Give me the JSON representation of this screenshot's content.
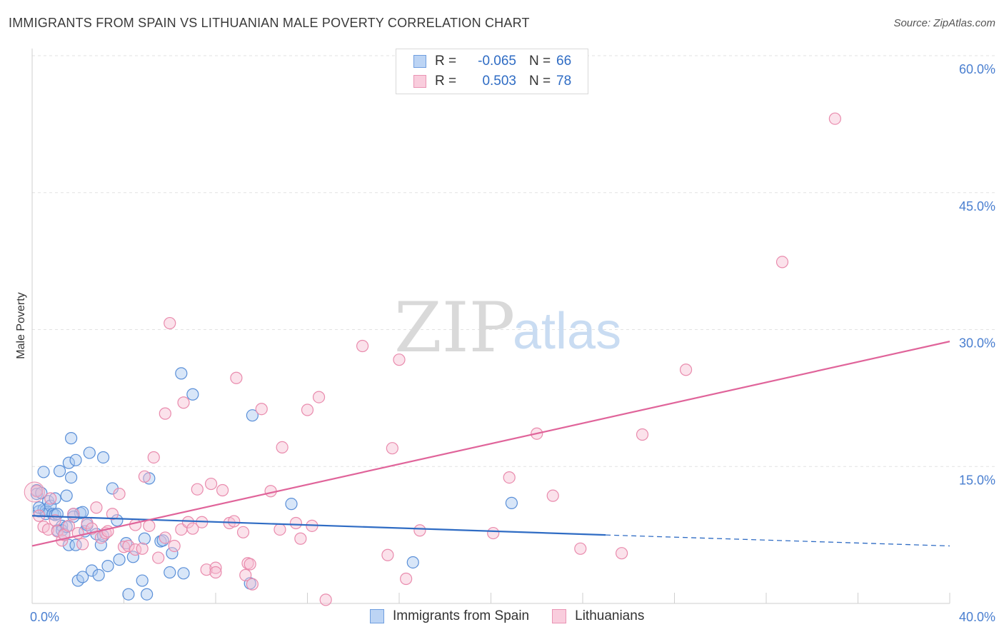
{
  "header": {
    "title": "IMMIGRANTS FROM SPAIN VS LITHUANIAN MALE POVERTY CORRELATION CHART",
    "source": "Source: ZipAtlas.com"
  },
  "watermark": {
    "zip": "ZIP",
    "atlas": "atlas"
  },
  "legend": {
    "rows": [
      {
        "r_label": "R =",
        "r_value": "-0.065",
        "n_label": "N =",
        "n_value": "66"
      },
      {
        "r_label": "R =",
        "r_value": "0.503",
        "n_label": "N =",
        "n_value": "78"
      }
    ]
  },
  "bottom_legend": {
    "items": [
      {
        "label": "Immigrants from Spain"
      },
      {
        "label": "Lithuanians"
      }
    ]
  },
  "colors": {
    "blue_fill": "#a9c8f0",
    "blue_stroke": "#5a8fd8",
    "blue_line": "#2f6cc4",
    "pink_fill": "#f6bfd2",
    "pink_stroke": "#e98bad",
    "pink_line": "#e0649a",
    "grid": "#e2e2e2",
    "tick_text": "#4a7fd0"
  },
  "chart_data": {
    "type": "scatter",
    "title": "IMMIGRANTS FROM SPAIN VS LITHUANIAN MALE POVERTY CORRELATION CHART",
    "xlabel": "",
    "ylabel": "Male Poverty",
    "xlim": [
      0,
      40
    ],
    "ylim": [
      0,
      60
    ],
    "x_tick_labels": [
      "0.0%",
      "40.0%"
    ],
    "y_tick_labels": [
      "15.0%",
      "30.0%",
      "45.0%",
      "60.0%"
    ],
    "y_ticks": [
      15,
      30,
      45,
      60
    ],
    "series": [
      {
        "name": "Immigrants from Spain",
        "R": -0.065,
        "N": 66,
        "trend": {
          "x0": 0,
          "y0": 9.6,
          "x1": 25,
          "y1": 7.5,
          "dash_to_x": 40,
          "dash_to_y": 6.3
        },
        "points": [
          [
            0.2,
            12.4
          ],
          [
            0.2,
            12.0
          ],
          [
            0.3,
            10.1
          ],
          [
            0.5,
            10.3
          ],
          [
            0.5,
            14.4
          ],
          [
            0.6,
            10.2
          ],
          [
            0.6,
            9.8
          ],
          [
            0.7,
            11.2
          ],
          [
            0.8,
            10.7
          ],
          [
            0.9,
            9.8
          ],
          [
            1.0,
            11.5
          ],
          [
            1.0,
            9.7
          ],
          [
            1.1,
            9.8
          ],
          [
            1.1,
            8.0
          ],
          [
            1.2,
            14.5
          ],
          [
            1.3,
            8.5
          ],
          [
            1.3,
            8.0
          ],
          [
            1.4,
            7.6
          ],
          [
            1.5,
            8.4
          ],
          [
            1.5,
            11.8
          ],
          [
            1.6,
            6.4
          ],
          [
            1.6,
            15.4
          ],
          [
            1.7,
            18.1
          ],
          [
            1.7,
            13.8
          ],
          [
            1.8,
            9.8
          ],
          [
            1.9,
            15.7
          ],
          [
            1.9,
            6.4
          ],
          [
            2.0,
            2.5
          ],
          [
            2.1,
            9.9
          ],
          [
            2.2,
            2.9
          ],
          [
            2.2,
            10.0
          ],
          [
            2.3,
            7.9
          ],
          [
            2.5,
            16.5
          ],
          [
            2.6,
            3.6
          ],
          [
            2.8,
            7.6
          ],
          [
            2.9,
            3.1
          ],
          [
            3.0,
            6.4
          ],
          [
            3.1,
            7.4
          ],
          [
            3.1,
            16.0
          ],
          [
            3.3,
            4.1
          ],
          [
            3.5,
            12.6
          ],
          [
            3.8,
            4.8
          ],
          [
            4.1,
            6.6
          ],
          [
            4.2,
            1.0
          ],
          [
            4.4,
            5.1
          ],
          [
            4.8,
            2.5
          ],
          [
            5.0,
            1.0
          ],
          [
            5.1,
            13.7
          ],
          [
            5.6,
            6.8
          ],
          [
            5.7,
            6.9
          ],
          [
            6.0,
            3.4
          ],
          [
            6.1,
            5.5
          ],
          [
            6.5,
            25.2
          ],
          [
            6.6,
            3.3
          ],
          [
            7.0,
            22.9
          ],
          [
            9.6,
            20.6
          ],
          [
            11.3,
            10.9
          ],
          [
            16.6,
            4.5
          ],
          [
            20.9,
            11.0
          ],
          [
            0.3,
            10.5
          ],
          [
            0.4,
            12.1
          ],
          [
            1.8,
            9.5
          ],
          [
            2.4,
            8.6
          ],
          [
            4.9,
            7.1
          ],
          [
            3.7,
            9.1
          ],
          [
            9.5,
            2.2
          ]
        ]
      },
      {
        "name": "Lithuanians",
        "R": 0.503,
        "N": 78,
        "trend": {
          "x0": 0,
          "y0": 6.3,
          "x1": 40,
          "y1": 28.7
        },
        "points": [
          [
            0.2,
            12.3
          ],
          [
            0.3,
            9.6
          ],
          [
            0.5,
            8.4
          ],
          [
            0.7,
            8.1
          ],
          [
            0.8,
            11.5
          ],
          [
            1.0,
            9.1
          ],
          [
            1.1,
            7.9
          ],
          [
            1.3,
            6.9
          ],
          [
            1.4,
            7.5
          ],
          [
            1.6,
            8.5
          ],
          [
            1.8,
            9.8
          ],
          [
            2.0,
            7.7
          ],
          [
            2.2,
            6.5
          ],
          [
            2.4,
            8.8
          ],
          [
            2.6,
            8.2
          ],
          [
            2.8,
            10.5
          ],
          [
            3.0,
            7.2
          ],
          [
            3.2,
            7.7
          ],
          [
            3.3,
            7.9
          ],
          [
            3.5,
            9.8
          ],
          [
            3.8,
            12.0
          ],
          [
            4.0,
            6.2
          ],
          [
            4.2,
            6.3
          ],
          [
            4.5,
            5.9
          ],
          [
            4.5,
            8.6
          ],
          [
            4.8,
            6.0
          ],
          [
            4.9,
            13.9
          ],
          [
            5.1,
            8.5
          ],
          [
            5.3,
            16.0
          ],
          [
            5.5,
            5.0
          ],
          [
            5.8,
            7.2
          ],
          [
            5.8,
            20.8
          ],
          [
            6.0,
            30.7
          ],
          [
            6.2,
            6.3
          ],
          [
            6.5,
            8.1
          ],
          [
            6.6,
            22.0
          ],
          [
            6.8,
            8.9
          ],
          [
            7.0,
            8.2
          ],
          [
            7.2,
            12.5
          ],
          [
            7.4,
            8.9
          ],
          [
            7.6,
            3.7
          ],
          [
            7.8,
            13.1
          ],
          [
            8.0,
            3.9
          ],
          [
            8.0,
            3.4
          ],
          [
            8.3,
            12.4
          ],
          [
            8.6,
            8.8
          ],
          [
            8.8,
            9.0
          ],
          [
            8.9,
            24.7
          ],
          [
            9.2,
            7.8
          ],
          [
            9.3,
            3.1
          ],
          [
            9.4,
            4.4
          ],
          [
            9.5,
            4.3
          ],
          [
            9.6,
            2.1
          ],
          [
            10.0,
            21.3
          ],
          [
            10.4,
            12.3
          ],
          [
            10.8,
            8.1
          ],
          [
            10.9,
            17.1
          ],
          [
            11.5,
            8.8
          ],
          [
            12.0,
            21.2
          ],
          [
            11.7,
            7.1
          ],
          [
            12.2,
            8.5
          ],
          [
            12.5,
            22.6
          ],
          [
            12.8,
            0.4
          ],
          [
            14.4,
            28.2
          ],
          [
            15.5,
            5.3
          ],
          [
            15.7,
            17.0
          ],
          [
            16.0,
            26.7
          ],
          [
            16.3,
            2.7
          ],
          [
            16.9,
            8.0
          ],
          [
            20.1,
            7.7
          ],
          [
            20.8,
            13.8
          ],
          [
            22.0,
            18.6
          ],
          [
            22.7,
            11.8
          ],
          [
            23.9,
            6.0
          ],
          [
            25.7,
            5.5
          ],
          [
            26.6,
            18.5
          ],
          [
            28.5,
            25.6
          ],
          [
            32.7,
            37.4
          ],
          [
            35.0,
            53.1
          ]
        ]
      }
    ]
  }
}
